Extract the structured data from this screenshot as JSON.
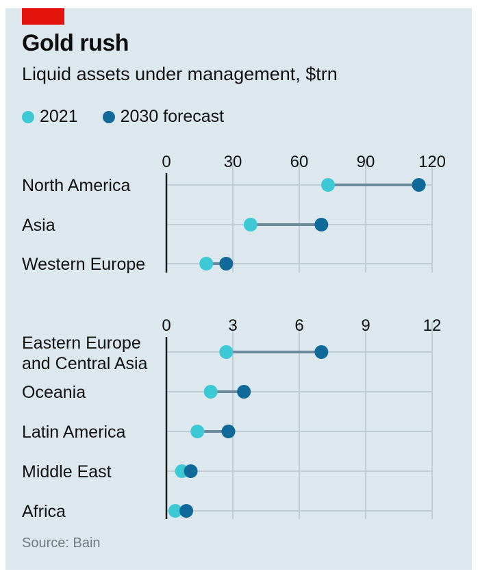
{
  "header": {
    "title": "Gold rush",
    "subtitle": "Liquid assets under management, $trn"
  },
  "legend": [
    {
      "label": "2021",
      "color": "#3dc8d6"
    },
    {
      "label": "2030 forecast",
      "color": "#106a99"
    }
  ],
  "source": "Source: Bain",
  "colors": {
    "accent": "#e3120b",
    "background": "#dde7ee",
    "grid": "#bfcdd7",
    "connector": "#6e8a9a",
    "series_2021": "#3dc8d6",
    "series_2030": "#106a99"
  },
  "chart_data": [
    {
      "type": "dumbbell",
      "xlim": [
        0,
        120
      ],
      "ticks": [
        "0",
        "30",
        "60",
        "90",
        "120"
      ],
      "grid": true,
      "categories": [
        "North America",
        "Asia",
        "Western Europe"
      ],
      "series": [
        {
          "name": "2021",
          "values": [
            73,
            38,
            18
          ]
        },
        {
          "name": "2030 forecast",
          "values": [
            114,
            70,
            27
          ]
        }
      ]
    },
    {
      "type": "dumbbell",
      "xlim": [
        0,
        12
      ],
      "ticks": [
        "0",
        "3",
        "6",
        "9",
        "12"
      ],
      "grid": true,
      "categories": [
        "Eastern Europe\nand Central Asia",
        "Oceania",
        "Latin America",
        "Middle East",
        "Africa"
      ],
      "series": [
        {
          "name": "2021",
          "values": [
            2.7,
            2.0,
            1.4,
            0.7,
            0.4
          ]
        },
        {
          "name": "2030 forecast",
          "values": [
            7.0,
            3.5,
            2.8,
            1.1,
            0.9
          ]
        }
      ]
    }
  ]
}
